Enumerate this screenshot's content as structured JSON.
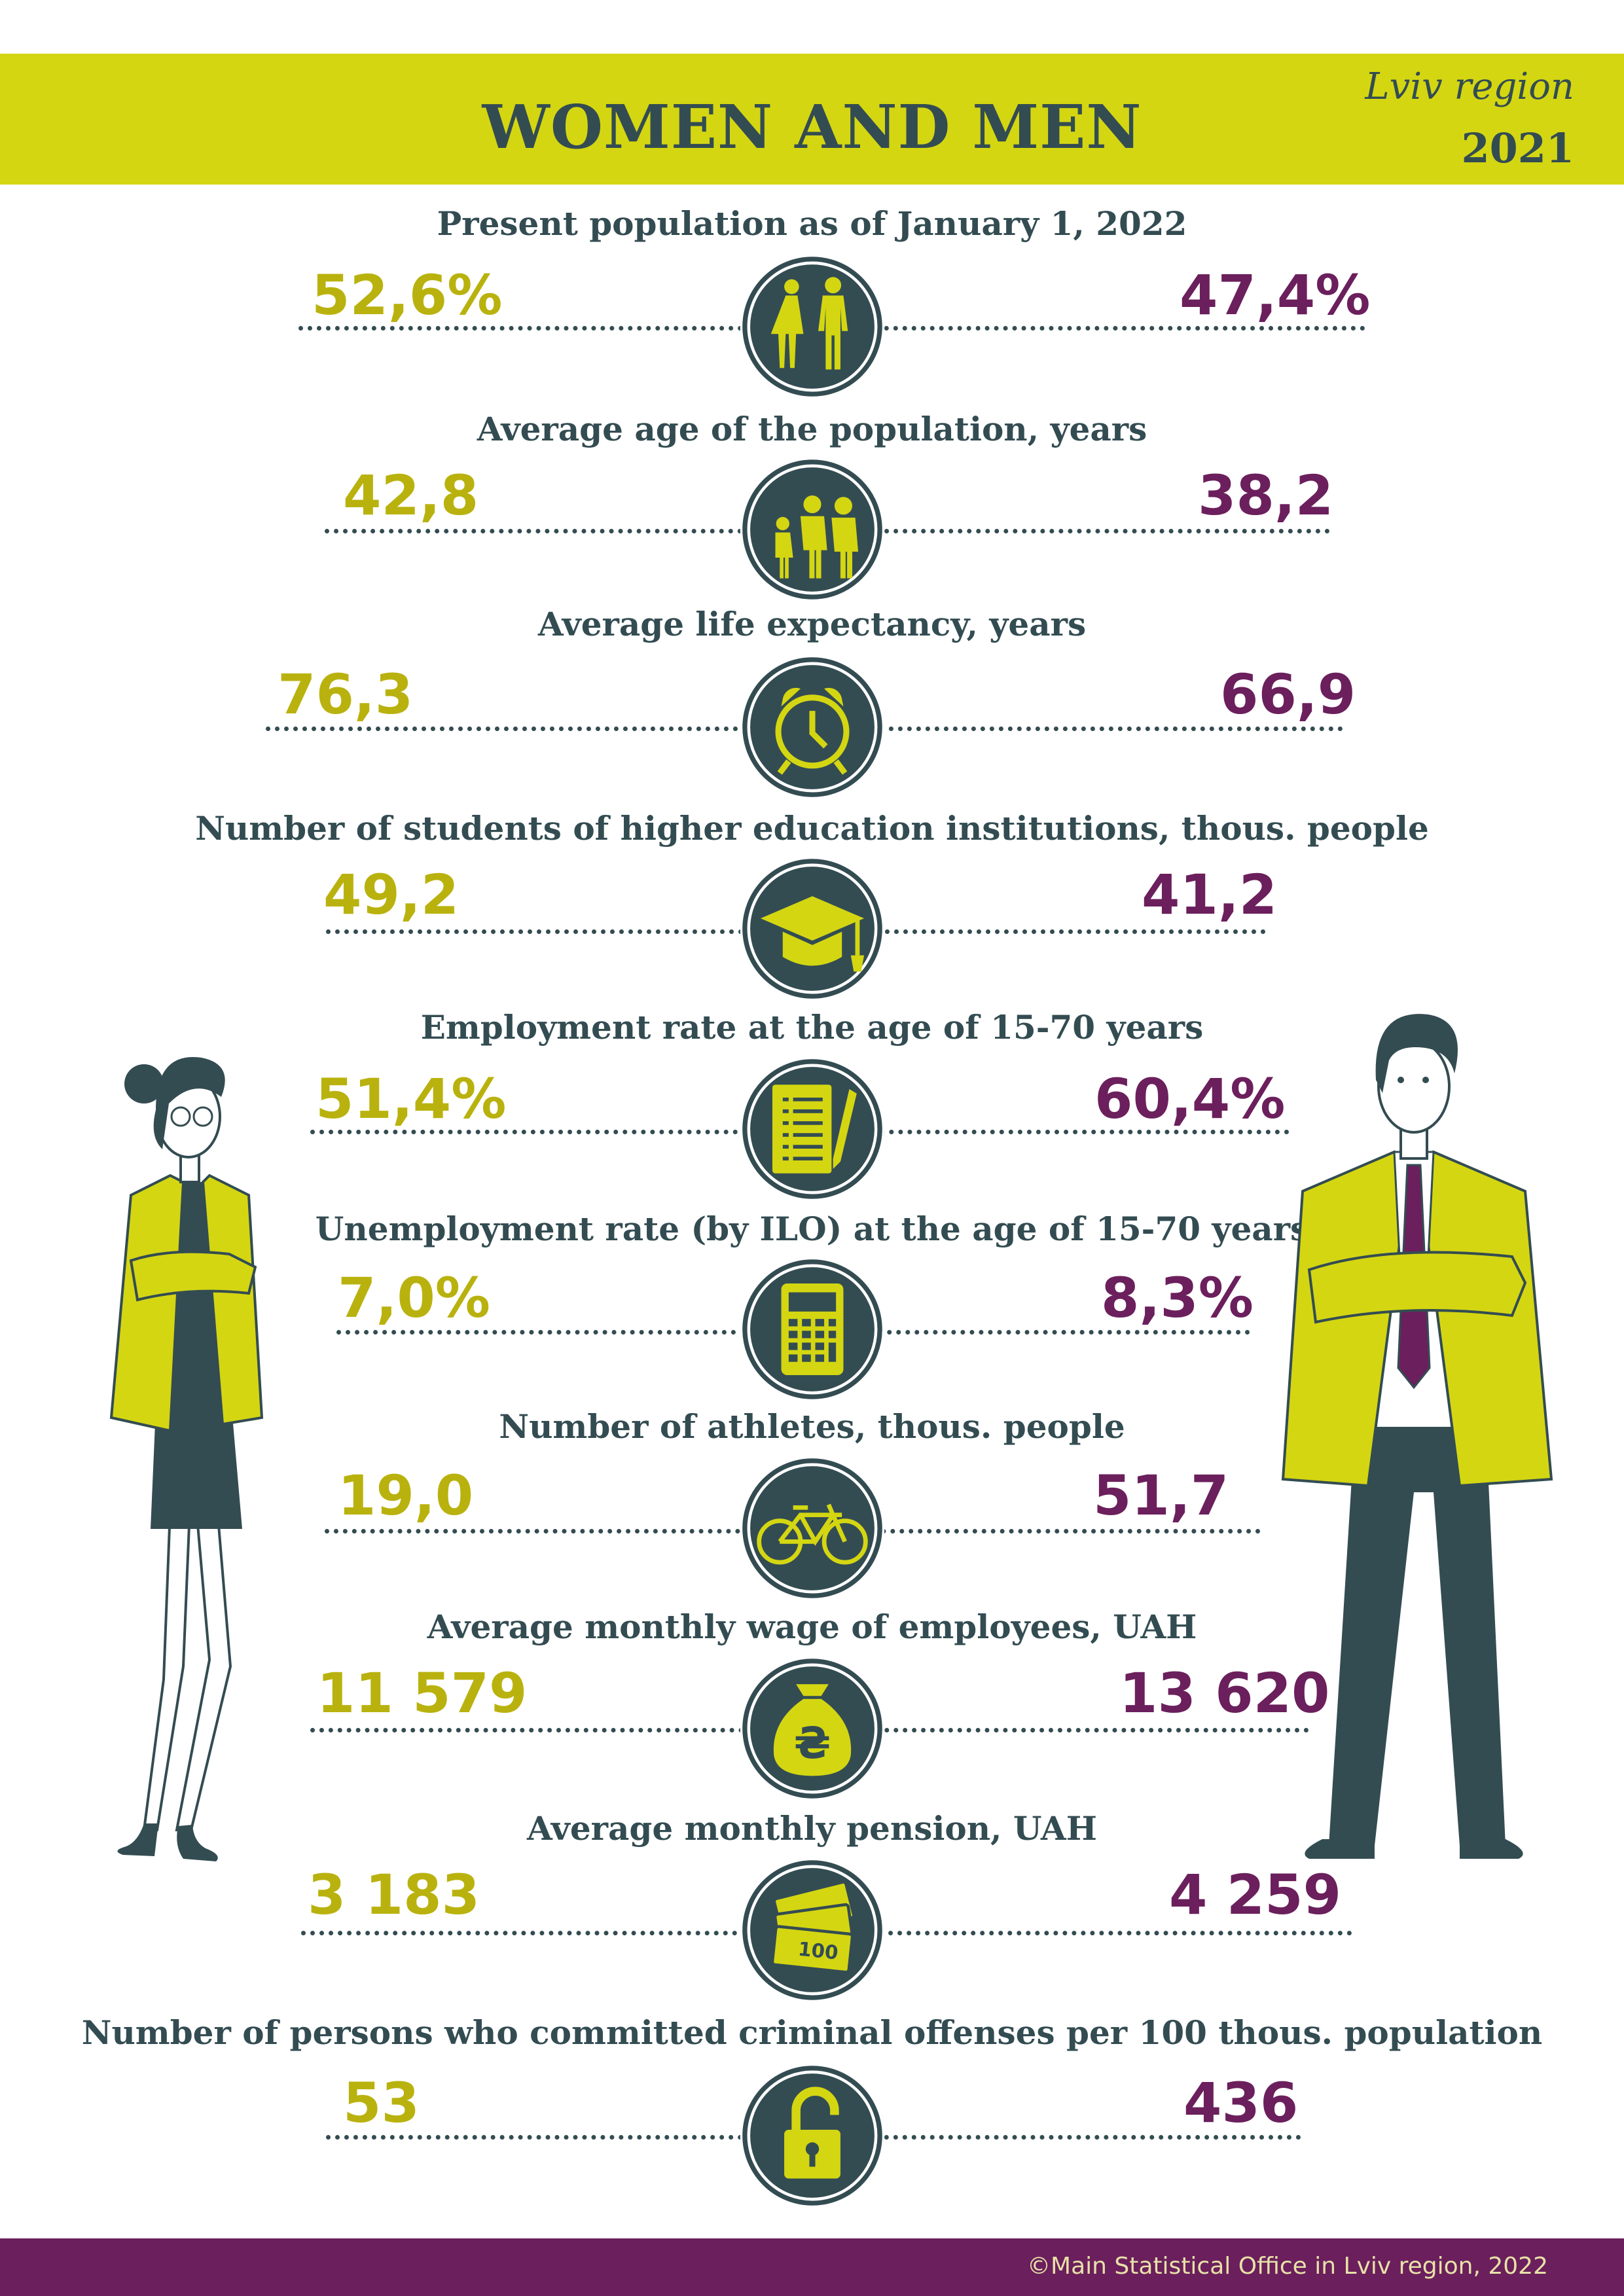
{
  "header": {
    "title": "WOMEN AND MEN",
    "region": "Lviv region",
    "year": "2021"
  },
  "colors": {
    "accent_yellow": "#d4d612",
    "female_value": "#b9b20e",
    "male_value": "#6b1f5c",
    "dark": "#334c52"
  },
  "rows": [
    {
      "label": "Present population as of January 1, 2022",
      "female": "52,6%",
      "male": "47,4%",
      "icon": "couple-icon"
    },
    {
      "label": "Average age of the population, years",
      "female": "42,8",
      "male": "38,2",
      "icon": "family-icon"
    },
    {
      "label": "Average life expectancy, years",
      "female": "76,3",
      "male": "66,9",
      "icon": "alarm-clock-icon"
    },
    {
      "label": "Number of students of higher education institutions, thous. people",
      "female": "49,2",
      "male": "41,2",
      "icon": "graduation-cap-icon"
    },
    {
      "label": "Employment rate at the age of 15-70 years",
      "female": "51,4%",
      "male": "60,4%",
      "icon": "document-pen-icon"
    },
    {
      "label": "Unemployment rate (by ILO) at the age of 15-70 years",
      "female": "7,0%",
      "male": "8,3%",
      "icon": "calculator-icon"
    },
    {
      "label": "Number of athletes, thous. people",
      "female": "19,0",
      "male": "51,7",
      "icon": "bicycle-icon"
    },
    {
      "label": "Average monthly wage of employees, UAH",
      "female": "11 579",
      "male": "13 620",
      "icon": "money-bag-icon"
    },
    {
      "label": "Average monthly pension, UAH",
      "female": "3 183",
      "male": "4 259",
      "icon": "banknotes-icon"
    },
    {
      "label": "Number of persons who committed criminal offenses per 100 thous. population",
      "female": "53",
      "male": "436",
      "icon": "padlock-icon"
    }
  ],
  "banknote_text": "100",
  "hryvnia_symbol": "₴",
  "footer": {
    "copyright": "©Main Statistical Office in Lviv region, 2022"
  }
}
